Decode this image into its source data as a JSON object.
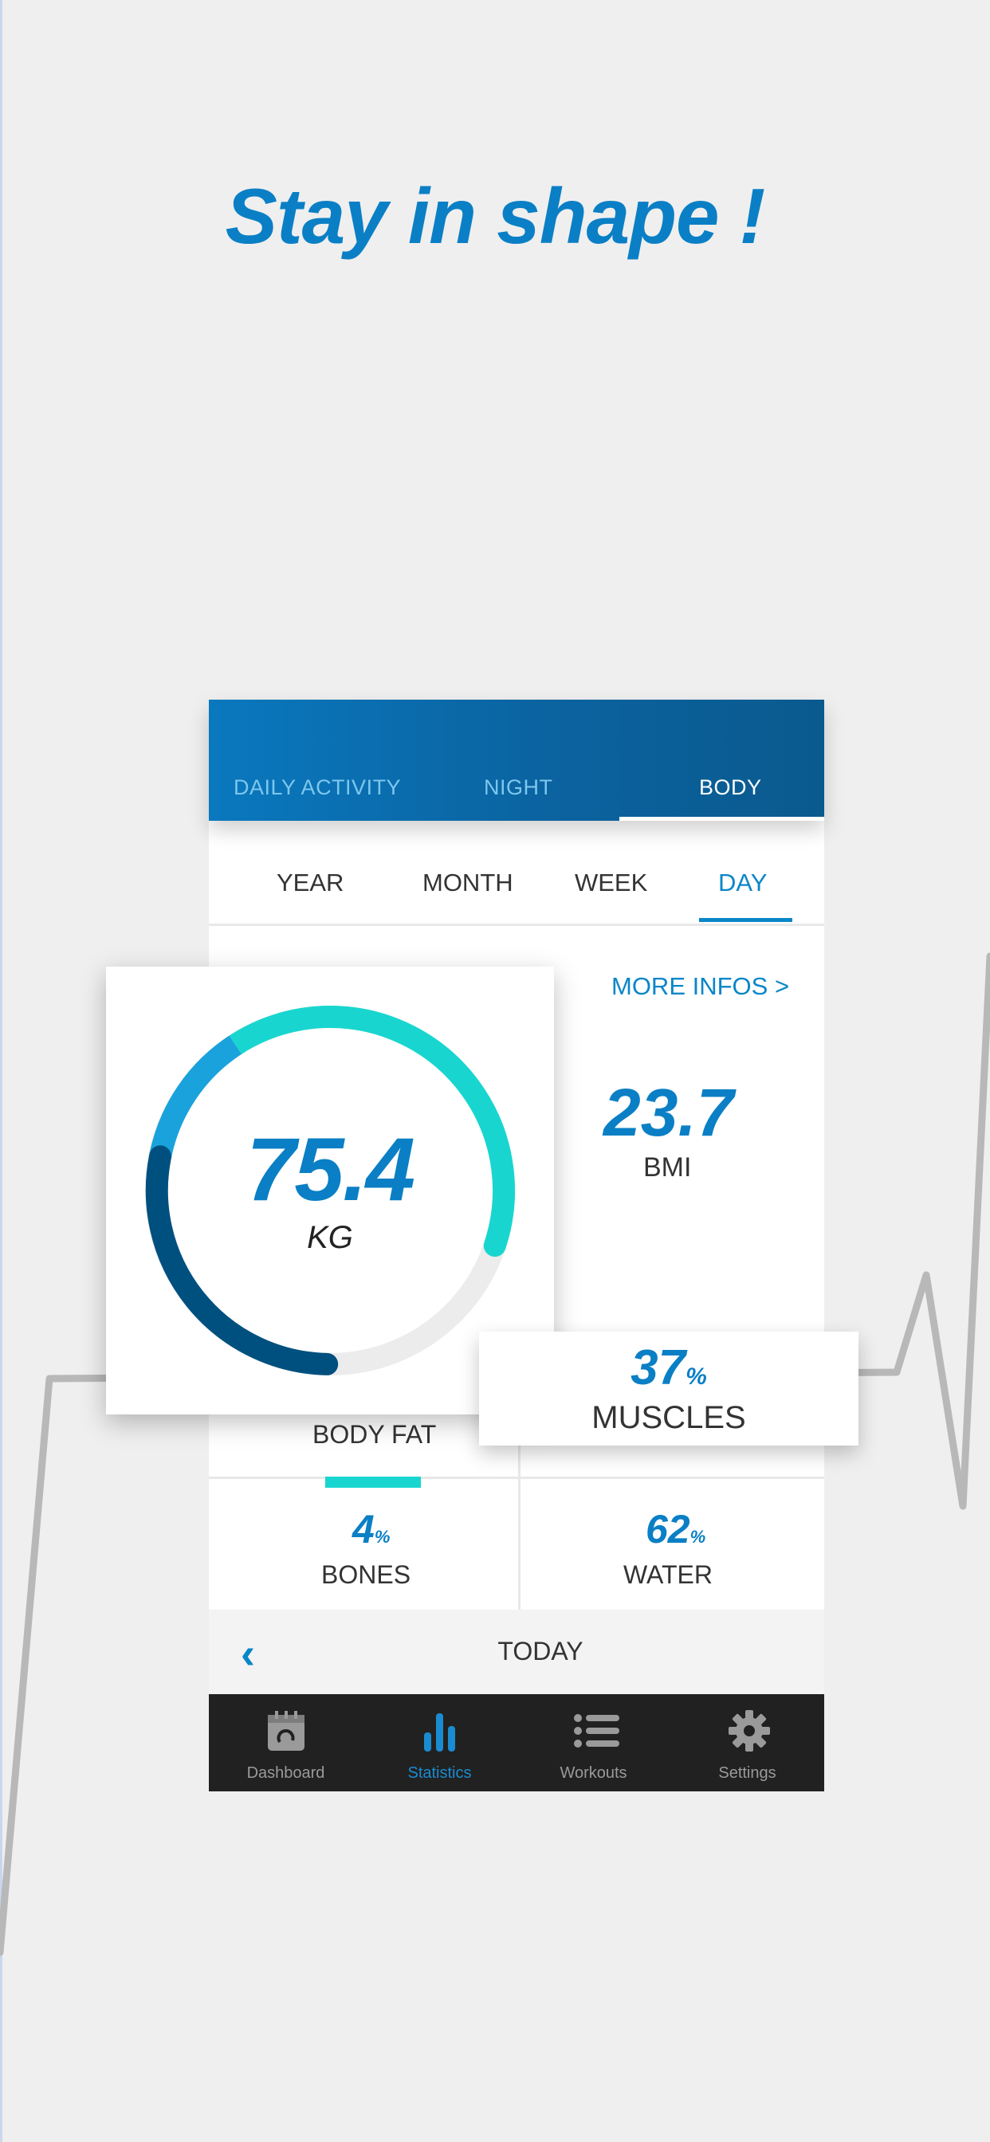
{
  "headline": "Stay in shape !",
  "top_tabs": [
    {
      "label": "DAILY ACTIVITY",
      "active": false
    },
    {
      "label": "NIGHT",
      "active": false
    },
    {
      "label": "BODY",
      "active": true
    }
  ],
  "periods": [
    {
      "label": "YEAR",
      "active": false
    },
    {
      "label": "MONTH",
      "active": false
    },
    {
      "label": "WEEK",
      "active": false
    },
    {
      "label": "DAY",
      "active": true
    }
  ],
  "more_infos": "MORE INFOS >",
  "weight": {
    "value": "75.4",
    "unit": "KG"
  },
  "bmi": {
    "value": "23.7",
    "label": "BMI"
  },
  "body_fat": {
    "label": "BODY FAT"
  },
  "muscles": {
    "value": "37",
    "unit": "%",
    "label": "MUSCLES"
  },
  "bones": {
    "value": "4",
    "unit": "%",
    "label": "BONES"
  },
  "water": {
    "value": "62",
    "unit": "%",
    "label": "WATER"
  },
  "date_nav": {
    "back_icon": "chevron-left-icon",
    "label": "TODAY"
  },
  "bottom_nav": [
    {
      "label": "Dashboard",
      "icon": "calendar-icon",
      "active": false
    },
    {
      "label": "Statistics",
      "icon": "bar-chart-icon",
      "active": true
    },
    {
      "label": "Workouts",
      "icon": "list-icon",
      "active": false
    },
    {
      "label": "Settings",
      "icon": "gear-icon",
      "active": false
    }
  ],
  "colors": {
    "accent": "#0a7fc5",
    "teal": "#18d6cf",
    "gauge_dark": "#00507f",
    "gauge_light": "#1aa2dc",
    "nav_bg": "#212121"
  }
}
